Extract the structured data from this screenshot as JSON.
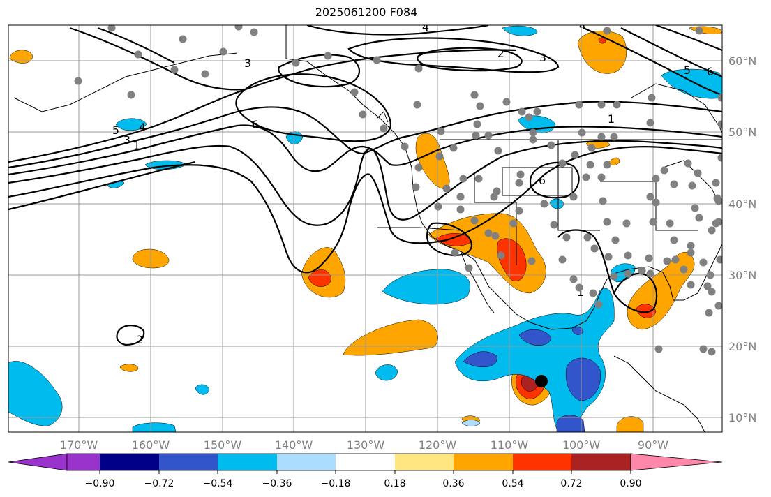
{
  "title": "2025061200 F084",
  "chart_data": {
    "type": "map",
    "title": "2025061200 F084",
    "projection": "equirectangular",
    "lon_ticks": [
      "170°W",
      "160°W",
      "150°W",
      "140°W",
      "130°W",
      "120°W",
      "110°W",
      "100°W",
      "90°W"
    ],
    "lat_ticks": [
      "60°N",
      "50°N",
      "40°N",
      "30°N",
      "20°N",
      "10°N"
    ],
    "grid": true,
    "colorbar": {
      "ticks": [
        "−0.90",
        "−0.72",
        "−0.54",
        "−0.36",
        "−0.18",
        "0.18",
        "0.36",
        "0.54",
        "0.72",
        "0.90"
      ],
      "colors": [
        "#9933cc",
        "#000088",
        "#3355cc",
        "#00bbee",
        "#aaddff",
        "#ffffff",
        "#ffe680",
        "#ffa500",
        "#ff3300",
        "#aa2222",
        "#ff88aa"
      ],
      "extend": "both"
    },
    "contour_labels": [
      "4",
      "4",
      "3",
      "2",
      "3",
      "5",
      "6",
      "6",
      "5",
      "4",
      "3",
      "1",
      "6",
      "1",
      "2",
      "1"
    ],
    "marker_color": "#808080"
  }
}
